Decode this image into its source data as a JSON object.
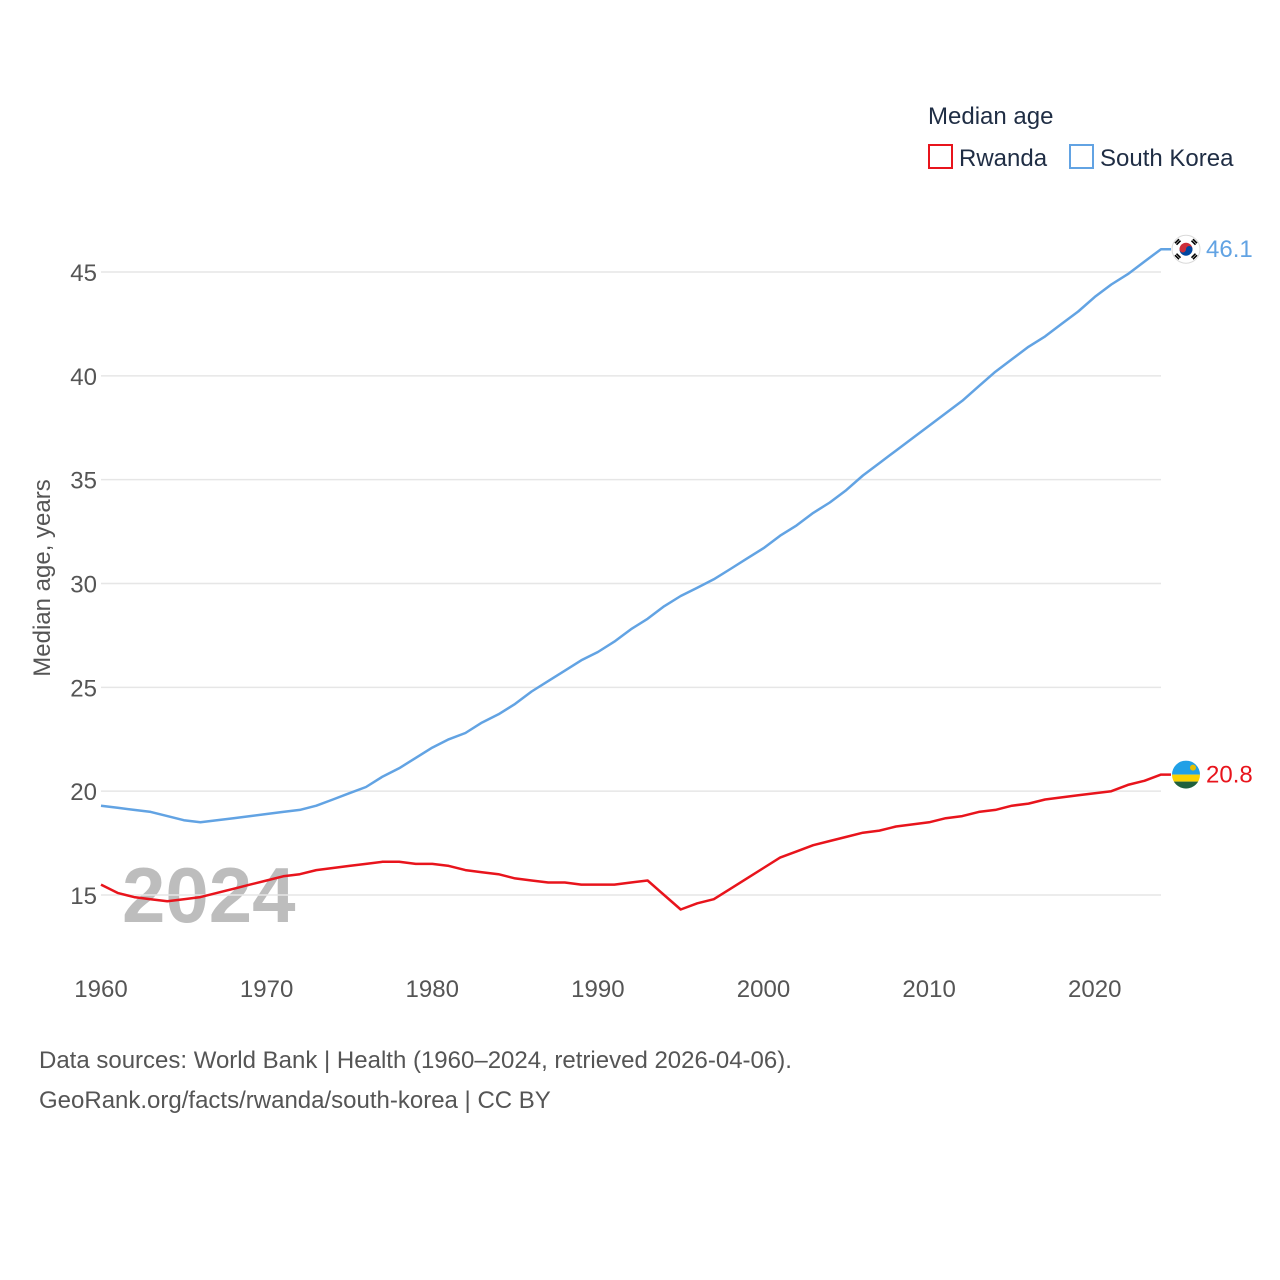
{
  "chart_data": {
    "type": "line",
    "title": "Median age",
    "ylabel": "Median age, years",
    "xlabel": "",
    "xlim": [
      1960,
      2024
    ],
    "ylim": [
      12,
      47.5
    ],
    "yticks": [
      15,
      20,
      25,
      30,
      35,
      40,
      45
    ],
    "xticks": [
      1960,
      1970,
      1980,
      1990,
      2000,
      2010,
      2020
    ],
    "grid": true,
    "legend_position": "top-right",
    "year_label": "2024",
    "series": [
      {
        "name": "Rwanda",
        "color": "#e8141c",
        "end_label": "20.8",
        "flag": "rwanda-flag",
        "x": [
          1960,
          1961,
          1962,
          1963,
          1964,
          1965,
          1966,
          1967,
          1968,
          1969,
          1970,
          1971,
          1972,
          1973,
          1974,
          1975,
          1976,
          1977,
          1978,
          1979,
          1980,
          1981,
          1982,
          1983,
          1984,
          1985,
          1986,
          1987,
          1988,
          1989,
          1990,
          1991,
          1992,
          1993,
          1994,
          1995,
          1996,
          1997,
          1998,
          1999,
          2000,
          2001,
          2002,
          2003,
          2004,
          2005,
          2006,
          2007,
          2008,
          2009,
          2010,
          2011,
          2012,
          2013,
          2014,
          2015,
          2016,
          2017,
          2018,
          2019,
          2020,
          2021,
          2022,
          2023,
          2024
        ],
        "values": [
          15.5,
          15.1,
          14.9,
          14.8,
          14.7,
          14.8,
          14.9,
          15.1,
          15.3,
          15.5,
          15.7,
          15.9,
          16.0,
          16.2,
          16.3,
          16.4,
          16.5,
          16.6,
          16.6,
          16.5,
          16.5,
          16.4,
          16.2,
          16.1,
          16.0,
          15.8,
          15.7,
          15.6,
          15.6,
          15.5,
          15.5,
          15.5,
          15.6,
          15.7,
          15.0,
          14.3,
          14.6,
          14.8,
          15.3,
          15.8,
          16.3,
          16.8,
          17.1,
          17.4,
          17.6,
          17.8,
          18.0,
          18.1,
          18.3,
          18.4,
          18.5,
          18.7,
          18.8,
          19.0,
          19.1,
          19.3,
          19.4,
          19.6,
          19.7,
          19.8,
          19.9,
          20.0,
          20.3,
          20.5,
          20.8
        ]
      },
      {
        "name": "South Korea",
        "color": "#62a3e3",
        "end_label": "46.1",
        "flag": "south-korea-flag",
        "x": [
          1960,
          1961,
          1962,
          1963,
          1964,
          1965,
          1966,
          1967,
          1968,
          1969,
          1970,
          1971,
          1972,
          1973,
          1974,
          1975,
          1976,
          1977,
          1978,
          1979,
          1980,
          1981,
          1982,
          1983,
          1984,
          1985,
          1986,
          1987,
          1988,
          1989,
          1990,
          1991,
          1992,
          1993,
          1994,
          1995,
          1996,
          1997,
          1998,
          1999,
          2000,
          2001,
          2002,
          2003,
          2004,
          2005,
          2006,
          2007,
          2008,
          2009,
          2010,
          2011,
          2012,
          2013,
          2014,
          2015,
          2016,
          2017,
          2018,
          2019,
          2020,
          2021,
          2022,
          2023,
          2024
        ],
        "values": [
          19.3,
          19.2,
          19.1,
          19.0,
          18.8,
          18.6,
          18.5,
          18.6,
          18.7,
          18.8,
          18.9,
          19.0,
          19.1,
          19.3,
          19.6,
          19.9,
          20.2,
          20.7,
          21.1,
          21.6,
          22.1,
          22.5,
          22.8,
          23.3,
          23.7,
          24.2,
          24.8,
          25.3,
          25.8,
          26.3,
          26.7,
          27.2,
          27.8,
          28.3,
          28.9,
          29.4,
          29.8,
          30.2,
          30.7,
          31.2,
          31.7,
          32.3,
          32.8,
          33.4,
          33.9,
          34.5,
          35.2,
          35.8,
          36.4,
          37.0,
          37.6,
          38.2,
          38.8,
          39.5,
          40.2,
          40.8,
          41.4,
          41.9,
          42.5,
          43.1,
          43.8,
          44.4,
          44.9,
          45.5,
          46.1
        ]
      }
    ]
  },
  "footer": {
    "sources": "Data sources: World Bank | Health (1960–2024, retrieved 2026-04-06).",
    "attribution": "GeoRank.org/facts/rwanda/south-korea | CC BY"
  }
}
